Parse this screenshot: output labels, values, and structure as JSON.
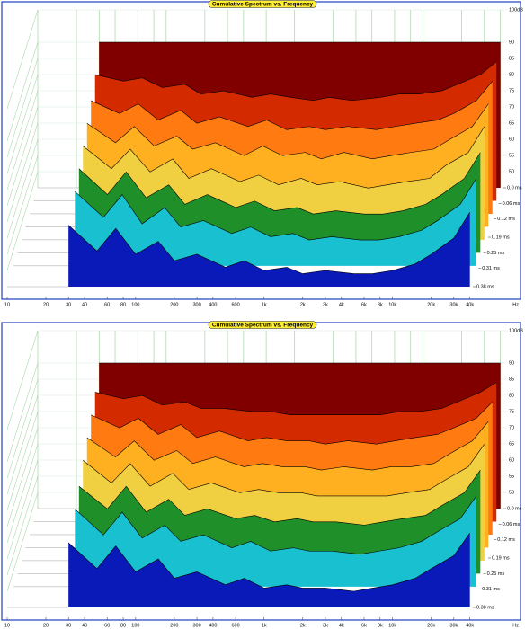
{
  "chart_data": [
    {
      "type": "waterfall",
      "title": "Cumulative Spectrum vs. Frequency",
      "xlabel": "Hz",
      "log_x": true,
      "xlim": [
        10,
        45000
      ],
      "ylim": [
        45,
        100
      ],
      "zlim": [
        0,
        0.38
      ],
      "xticks": [
        10,
        20,
        30,
        40,
        60,
        80,
        100,
        200,
        300,
        400,
        600,
        {
          "value": 1000,
          "label": "1k"
        },
        {
          "value": 2000,
          "label": "2k"
        },
        {
          "value": 3000,
          "label": "3k"
        },
        {
          "value": 4000,
          "label": "4k"
        },
        {
          "value": 6000,
          "label": "6k"
        },
        {
          "value": 8000,
          "label": "8k"
        },
        {
          "value": 10000,
          "label": "10k"
        },
        {
          "value": 20000,
          "label": "20k"
        },
        {
          "value": 30000,
          "label": "30k"
        },
        {
          "value": 40000,
          "label": "40k"
        }
      ],
      "yticks": [
        {
          "value": 100,
          "label": "100dB"
        },
        90,
        85,
        80,
        75,
        70,
        65,
        60,
        55,
        50
      ],
      "zticks": [
        {
          "value": 0,
          "label": "0.0 ms"
        },
        {
          "value": 0.06,
          "label": "0.06 ms"
        },
        {
          "value": 0.12,
          "label": "0.12 ms"
        },
        {
          "value": 0.19,
          "label": "0.19 ms"
        },
        {
          "value": 0.25,
          "label": "0.25 ms"
        },
        {
          "value": 0.31,
          "label": "0.31 ms"
        },
        {
          "value": 0.38,
          "label": "0.38 ms"
        }
      ],
      "x": [
        30,
        50,
        70,
        100,
        150,
        200,
        300,
        500,
        700,
        1000,
        1500,
        2000,
        3000,
        5000,
        7000,
        10000,
        15000,
        20000,
        30000,
        40000
      ],
      "series": [
        {
          "time": 0,
          "color": "#800000",
          "values": [
            90,
            90,
            90,
            90,
            90,
            90,
            90,
            90,
            90,
            90,
            90,
            90,
            90,
            90,
            90,
            90,
            90,
            90,
            90,
            90
          ]
        },
        {
          "time": 0.05,
          "color": "#d42a00",
          "values": [
            84,
            82,
            83,
            80,
            81,
            78,
            79,
            77,
            78,
            77,
            76,
            77,
            76,
            77,
            78,
            78,
            79,
            81,
            84,
            88
          ]
        },
        {
          "time": 0.1,
          "color": "#ff7a10",
          "values": [
            80,
            76,
            79,
            74,
            77,
            73,
            75,
            72,
            74,
            71,
            72,
            71,
            72,
            71,
            72,
            73,
            74,
            76,
            80,
            86
          ]
        },
        {
          "time": 0.15,
          "color": "#ffb020",
          "values": [
            77,
            71,
            76,
            70,
            73,
            69,
            71,
            67,
            70,
            67,
            68,
            66,
            68,
            66,
            67,
            68,
            69,
            72,
            76,
            83
          ]
        },
        {
          "time": 0.2,
          "color": "#f0d040",
          "values": [
            74,
            67,
            73,
            66,
            70,
            64,
            67,
            63,
            65,
            62,
            64,
            62,
            63,
            61,
            62,
            63,
            64,
            68,
            72,
            80
          ]
        },
        {
          "time": 0.25,
          "color": "#1f8f2a",
          "values": [
            71,
            63,
            70,
            62,
            66,
            60,
            63,
            59,
            61,
            58,
            59,
            57,
            58,
            57,
            57,
            58,
            60,
            63,
            68,
            76
          ]
        },
        {
          "time": 0.3,
          "color": "#18c0d0",
          "values": [
            68,
            60,
            67,
            58,
            63,
            57,
            59,
            55,
            57,
            54,
            55,
            53,
            54,
            53,
            53,
            54,
            56,
            59,
            64,
            72
          ]
        },
        {
          "time": 0.38,
          "color": "#0a1ab8",
          "values": [
            64,
            56,
            63,
            55,
            59,
            53,
            55,
            51,
            53,
            50,
            51,
            49,
            50,
            49,
            49,
            50,
            52,
            55,
            60,
            68
          ]
        }
      ]
    },
    {
      "type": "waterfall",
      "title": "Cumulative Spectrum vs. Frequency",
      "xlabel": "Hz",
      "log_x": true,
      "xlim": [
        10,
        45000
      ],
      "ylim": [
        45,
        100
      ],
      "zlim": [
        0,
        0.38
      ],
      "xticks": [
        10,
        20,
        30,
        40,
        60,
        80,
        100,
        200,
        300,
        400,
        600,
        {
          "value": 1000,
          "label": "1k"
        },
        {
          "value": 2000,
          "label": "2k"
        },
        {
          "value": 3000,
          "label": "3k"
        },
        {
          "value": 4000,
          "label": "4k"
        },
        {
          "value": 6000,
          "label": "6k"
        },
        {
          "value": 8000,
          "label": "8k"
        },
        {
          "value": 10000,
          "label": "10k"
        },
        {
          "value": 20000,
          "label": "20k"
        },
        {
          "value": 30000,
          "label": "30k"
        },
        {
          "value": 40000,
          "label": "40k"
        }
      ],
      "yticks": [
        {
          "value": 100,
          "label": "100dB"
        },
        90,
        85,
        80,
        75,
        70,
        65,
        60,
        55,
        50
      ],
      "zticks": [
        {
          "value": 0,
          "label": "0.0 ms"
        },
        {
          "value": 0.06,
          "label": "0.06 ms"
        },
        {
          "value": 0.12,
          "label": "0.12 ms"
        },
        {
          "value": 0.19,
          "label": "0.19 ms"
        },
        {
          "value": 0.25,
          "label": "0.25 ms"
        },
        {
          "value": 0.31,
          "label": "0.31 ms"
        },
        {
          "value": 0.38,
          "label": "0.38 ms"
        }
      ],
      "x": [
        30,
        50,
        70,
        100,
        150,
        200,
        300,
        500,
        700,
        1000,
        1500,
        2000,
        3000,
        5000,
        7000,
        10000,
        15000,
        20000,
        30000,
        40000
      ],
      "series": [
        {
          "time": 0,
          "color": "#800000",
          "values": [
            90,
            90,
            90,
            90,
            90,
            90,
            90,
            90,
            90,
            90,
            90,
            90,
            90,
            90,
            90,
            90,
            90,
            90,
            90,
            90
          ]
        },
        {
          "time": 0.05,
          "color": "#d42a00",
          "values": [
            85,
            83,
            84,
            81,
            82,
            80,
            80,
            79,
            79,
            78,
            78,
            78,
            78,
            78,
            79,
            79,
            80,
            82,
            85,
            88
          ]
        },
        {
          "time": 0.1,
          "color": "#ff7a10",
          "values": [
            82,
            78,
            81,
            76,
            79,
            75,
            77,
            74,
            75,
            74,
            74,
            73,
            74,
            73,
            74,
            75,
            76,
            78,
            81,
            86
          ]
        },
        {
          "time": 0.15,
          "color": "#ffb020",
          "values": [
            79,
            73,
            78,
            72,
            75,
            71,
            73,
            70,
            71,
            70,
            70,
            69,
            70,
            69,
            70,
            70,
            71,
            74,
            78,
            84
          ]
        },
        {
          "time": 0.2,
          "color": "#f0d040",
          "values": [
            76,
            69,
            75,
            68,
            72,
            67,
            69,
            66,
            67,
            66,
            66,
            65,
            65,
            65,
            65,
            66,
            67,
            70,
            74,
            81
          ]
        },
        {
          "time": 0.25,
          "color": "#1f8f2a",
          "values": [
            72,
            65,
            72,
            64,
            68,
            63,
            65,
            62,
            63,
            61,
            62,
            61,
            61,
            60,
            61,
            62,
            63,
            66,
            70,
            77
          ]
        },
        {
          "time": 0.3,
          "color": "#18c0d0",
          "values": [
            69,
            61,
            68,
            60,
            64,
            59,
            61,
            57,
            59,
            56,
            57,
            56,
            56,
            55,
            56,
            57,
            59,
            62,
            66,
            73
          ]
        },
        {
          "time": 0.38,
          "color": "#0a1ab8",
          "values": [
            65,
            57,
            64,
            56,
            60,
            54,
            56,
            52,
            54,
            51,
            52,
            51,
            51,
            50,
            51,
            52,
            54,
            57,
            61,
            68
          ]
        }
      ]
    }
  ]
}
